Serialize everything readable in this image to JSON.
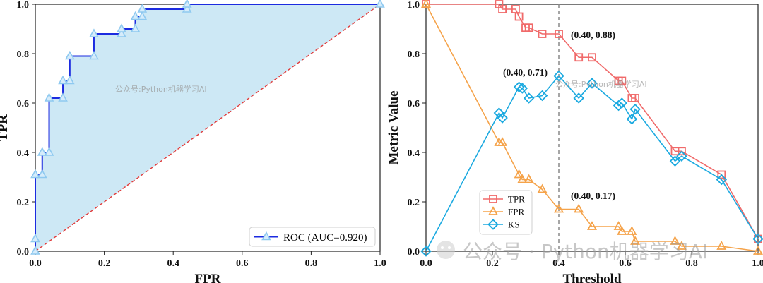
{
  "chart_data": [
    {
      "type": "line",
      "name": "roc",
      "xlabel": "FPR",
      "ylabel": "TPR",
      "xlim": [
        0,
        1
      ],
      "ylim": [
        0,
        1
      ],
      "xticks": [
        "0.0",
        "0.2",
        "0.4",
        "0.6",
        "0.8",
        "1.0"
      ],
      "yticks": [
        "0.0",
        "0.2",
        "0.4",
        "0.6",
        "0.8",
        "1.0"
      ],
      "legend": "ROC (AUC=0.920)",
      "legend_position": "lower-right",
      "fill_color": "#cde8f5",
      "line_color": "#1c2be0",
      "diagonal_color": "#e03a3a",
      "marker_color": "#8ec9f0",
      "series": [
        {
          "name": "ROC (AUC=0.920)",
          "x": [
            0.0,
            0.0,
            0.0,
            0.02,
            0.02,
            0.04,
            0.04,
            0.08,
            0.08,
            0.1,
            0.1,
            0.17,
            0.17,
            0.25,
            0.25,
            0.29,
            0.29,
            0.31,
            0.31,
            0.44,
            0.44,
            1.0
          ],
          "y": [
            0.0,
            0.05,
            0.31,
            0.31,
            0.4,
            0.4,
            0.62,
            0.62,
            0.69,
            0.69,
            0.79,
            0.79,
            0.88,
            0.88,
            0.9,
            0.9,
            0.95,
            0.95,
            0.98,
            0.98,
            1.0,
            1.0
          ]
        }
      ],
      "watermark": "公众号:Python机器学习AI"
    },
    {
      "type": "line",
      "name": "threshold-metrics",
      "xlabel": "Threshold",
      "ylabel": "Metric Value",
      "xlim": [
        0,
        1
      ],
      "ylim": [
        0,
        1
      ],
      "xticks": [
        "0.0",
        "0.2",
        "0.4",
        "0.6",
        "0.8",
        "1.0"
      ],
      "yticks": [
        "0.0",
        "0.2",
        "0.4",
        "0.6",
        "0.8",
        "1.0"
      ],
      "vline": 0.4,
      "legend_position": "lower-left",
      "series": [
        {
          "name": "TPR",
          "color": "#f06a6a",
          "marker": "square",
          "x": [
            0.0,
            0.22,
            0.23,
            0.27,
            0.28,
            0.3,
            0.31,
            0.35,
            0.4,
            0.46,
            0.5,
            0.58,
            0.59,
            0.62,
            0.63,
            0.75,
            0.77,
            0.89,
            1.0
          ],
          "y": [
            1.0,
            1.0,
            0.98,
            0.98,
            0.95,
            0.905,
            0.905,
            0.88,
            0.88,
            0.785,
            0.785,
            0.69,
            0.69,
            0.62,
            0.62,
            0.405,
            0.405,
            0.31,
            0.05
          ]
        },
        {
          "name": "FPR",
          "color": "#f5a34a",
          "marker": "triangle",
          "x": [
            0.0,
            0.22,
            0.23,
            0.28,
            0.29,
            0.31,
            0.35,
            0.4,
            0.46,
            0.5,
            0.58,
            0.59,
            0.62,
            0.63,
            0.75,
            0.77,
            0.89,
            1.0
          ],
          "y": [
            1.0,
            0.44,
            0.44,
            0.31,
            0.29,
            0.29,
            0.25,
            0.17,
            0.17,
            0.1,
            0.1,
            0.08,
            0.08,
            0.04,
            0.04,
            0.02,
            0.02,
            0.0
          ]
        },
        {
          "name": "KS",
          "color": "#1aa9e0",
          "marker": "diamond",
          "x": [
            0.0,
            0.22,
            0.23,
            0.28,
            0.29,
            0.31,
            0.35,
            0.4,
            0.46,
            0.5,
            0.58,
            0.59,
            0.62,
            0.63,
            0.75,
            0.77,
            0.89,
            1.0
          ],
          "y": [
            0.0,
            0.56,
            0.54,
            0.665,
            0.66,
            0.62,
            0.63,
            0.71,
            0.62,
            0.68,
            0.59,
            0.6,
            0.535,
            0.575,
            0.365,
            0.385,
            0.29,
            0.05
          ]
        }
      ],
      "annotations": [
        {
          "text": "(0.40, 0.88)",
          "x": 0.4,
          "y": 0.88
        },
        {
          "text": "(0.40, 0.71)",
          "x": 0.4,
          "y": 0.71
        },
        {
          "text": "(0.40, 0.17)",
          "x": 0.4,
          "y": 0.17
        }
      ],
      "watermark_small": "公众号:Python机器学习AI",
      "watermark_large": "公众号 · Python机器学习AI"
    }
  ]
}
